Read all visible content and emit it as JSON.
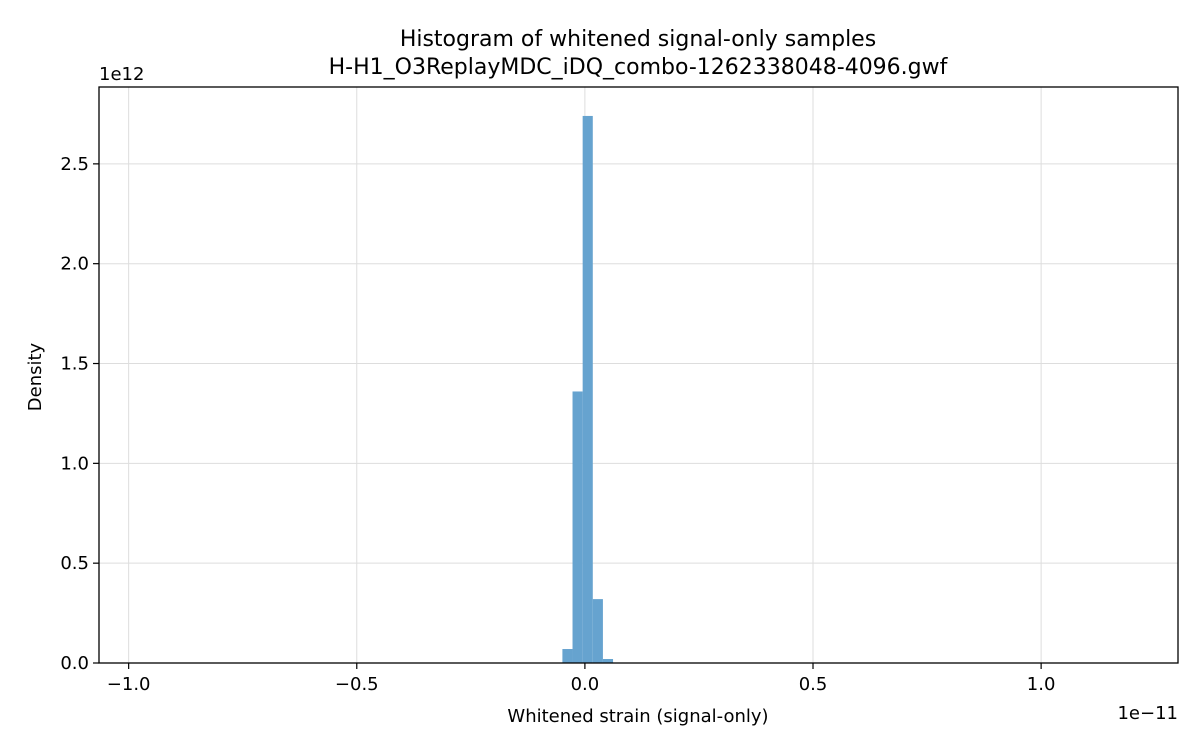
{
  "chart_data": {
    "type": "bar",
    "title": "Histogram of whitened signal-only samples",
    "subtitle": "H-H1_O3ReplayMDC_iDQ_combo-1262338048-4096.gwf",
    "xlabel": "Whitened strain (signal-only)",
    "ylabel": "Density",
    "x_offset_text": "1e−11",
    "y_offset_text": "1e12",
    "x_scale": 1e-11,
    "y_scale": 1000000000000.0,
    "xlim": [
      -1.065e-11,
      1.3e-11
    ],
    "ylim": [
      0,
      2885000000000.0
    ],
    "grid": true,
    "bar_color": "#66a3cf",
    "x_ticks": [
      -1e-11,
      -5e-12,
      0,
      5e-12,
      1e-11
    ],
    "x_tick_labels": [
      "−1.0",
      "−0.5",
      "0.0",
      "0.5",
      "1.0"
    ],
    "y_ticks": [
      0,
      500000000000.0,
      1000000000000.0,
      1500000000000.0,
      2000000000000.0,
      2500000000000.0
    ],
    "y_tick_labels": [
      "0.0",
      "0.5",
      "1.0",
      "1.5",
      "2.0",
      "2.5"
    ],
    "bins": [
      {
        "x0": -4.93e-13,
        "x1": -2.71e-13,
        "value": 70000000000.0
      },
      {
        "x0": -2.71e-13,
        "x1": -4.9e-14,
        "value": 1360000000000.0
      },
      {
        "x0": -4.9e-14,
        "x1": 1.73e-13,
        "value": 2740000000000.0
      },
      {
        "x0": 1.73e-13,
        "x1": 3.95e-13,
        "value": 320000000000.0
      },
      {
        "x0": 3.95e-13,
        "x1": 6.17e-13,
        "value": 20000000000.0
      }
    ]
  }
}
